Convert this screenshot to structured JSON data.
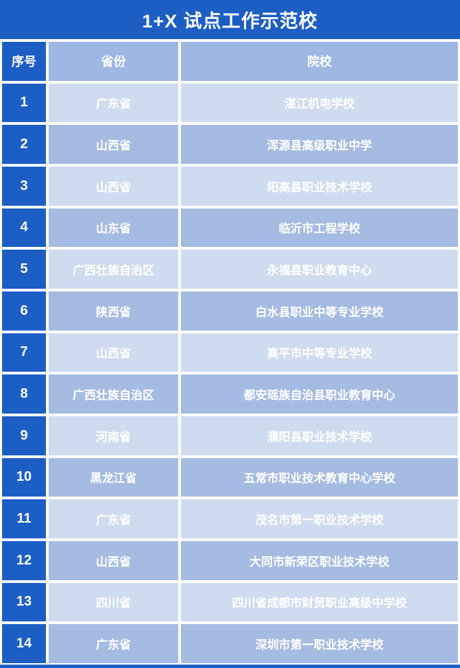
{
  "title": "1+X 试点工作示范校",
  "colors": {
    "primary_blue": "#1D5EC5",
    "header_cell": "#9EB8E3",
    "row_light": "#CFDCEF",
    "row_medium": "#A6BBE1",
    "text_white": "#FFFFFF"
  },
  "table": {
    "columns": [
      {
        "key": "index",
        "label": "序号"
      },
      {
        "key": "province",
        "label": "省份"
      },
      {
        "key": "school",
        "label": "院校"
      }
    ],
    "rows": [
      {
        "index": "1",
        "province": "广东省",
        "school": "湛江机电学校"
      },
      {
        "index": "2",
        "province": "山西省",
        "school": "浑源县高级职业中学"
      },
      {
        "index": "3",
        "province": "山西省",
        "school": "阳高县职业技术学校"
      },
      {
        "index": "4",
        "province": "山东省",
        "school": "临沂市工程学校"
      },
      {
        "index": "5",
        "province": "广西壮族自治区",
        "school": "永福县职业教育中心"
      },
      {
        "index": "6",
        "province": "陕西省",
        "school": "白水县职业中等专业学校"
      },
      {
        "index": "7",
        "province": "山西省",
        "school": "高平市中等专业学校"
      },
      {
        "index": "8",
        "province": "广西壮族自治区",
        "school": "都安瑶族自治县职业教育中心"
      },
      {
        "index": "9",
        "province": "河南省",
        "school": "濮阳县职业技术学校"
      },
      {
        "index": "10",
        "province": "黑龙江省",
        "school": "五常市职业技术教育中心学校"
      },
      {
        "index": "11",
        "province": "广东省",
        "school": "茂名市第一职业技术学校"
      },
      {
        "index": "12",
        "province": "山西省",
        "school": "大同市新荣区职业技术学校"
      },
      {
        "index": "13",
        "province": "四川省",
        "school": "四川省成都市财贸职业高级中学校"
      },
      {
        "index": "14",
        "province": "广东省",
        "school": "深圳市第一职业技术学校"
      }
    ]
  }
}
